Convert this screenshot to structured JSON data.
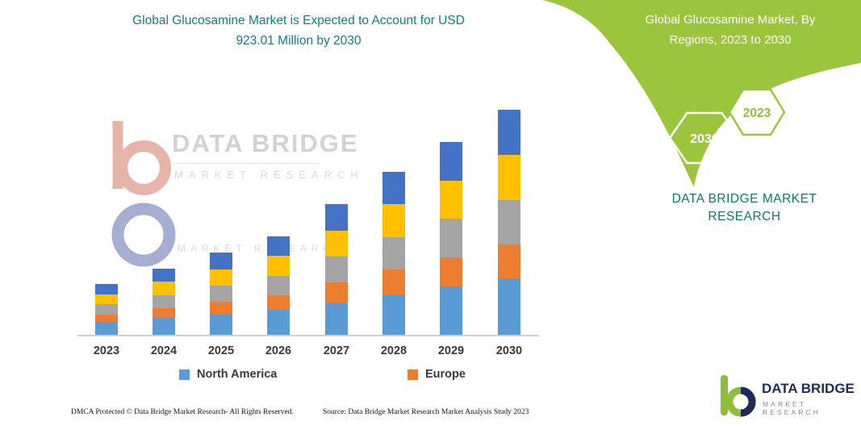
{
  "main_title": {
    "line1": "Global Glucosamine Market is Expected to Account for USD",
    "line2": "923.01 Million by 2030",
    "color": "#137C8B"
  },
  "side_panel": {
    "title_line1": "Global Glucosamine Market, By",
    "title_line2": "Regions, 2023 to 2030",
    "hexagon_back_label": "2030",
    "hexagon_front_label": "2023",
    "brand_line1": "DATA BRIDGE MARKET",
    "brand_line2": "RESEARCH",
    "panel_color": "#9BC53D",
    "brand_text_color": "#0B7A6C"
  },
  "watermark": {
    "title": "DATA BRIDGE",
    "subtitle": "MARKET RESEARCH",
    "faint_line": "MARKET RESEARCH"
  },
  "chart_data": {
    "type": "bar",
    "stacked": true,
    "title": "Global Glucosamine Market is Expected to Account for USD 923.01 Million by 2030",
    "unit": "USD Million",
    "categories": [
      "2023",
      "2024",
      "2025",
      "2026",
      "2027",
      "2028",
      "2029",
      "2030"
    ],
    "series": [
      {
        "name": "North America",
        "color": "#5B9BD5",
        "values": [
          52,
          68,
          84,
          101,
          134,
          167,
          198,
          231
        ]
      },
      {
        "name": "Europe",
        "color": "#ED7D31",
        "values": [
          31,
          41,
          51,
          60,
          80,
          100,
          119,
          138
        ]
      },
      {
        "name": "Unlabeled series 3 (gray)",
        "color": "#A5A5A5",
        "values": [
          42,
          54,
          67,
          81,
          107,
          134,
          158,
          185
        ]
      },
      {
        "name": "Unlabeled series 4 (yellow)",
        "color": "#FFC000",
        "values": [
          42,
          54,
          67,
          81,
          107,
          134,
          158,
          185
        ]
      },
      {
        "name": "Unlabeled series 5 (dark blue)",
        "color": "#4472C4",
        "values": [
          41,
          54,
          68,
          80,
          108,
          133,
          157,
          184.01
        ]
      }
    ],
    "totals_estimated": [
      208,
      271,
      337,
      403,
      536,
      668,
      790,
      923.01
    ],
    "xlabel": "",
    "ylabel": "",
    "grid": false,
    "legend_position": "bottom",
    "legend_visible_labels": [
      "North America",
      "Europe"
    ]
  },
  "legend": {
    "items": [
      {
        "label": "North America",
        "color": "#5B9BD5"
      },
      {
        "label": "Europe",
        "color": "#ED7D31"
      }
    ]
  },
  "footer": {
    "dmca": "DMCA Protected © Data Bridge Market Research-  All Rights Reserved.",
    "source": "Source: Data Bridge Market Research  Market Analysis Study 2023"
  },
  "logo": {
    "name": "DATA BRIDGE",
    "subtitle": "MARKET RESEARCH"
  }
}
